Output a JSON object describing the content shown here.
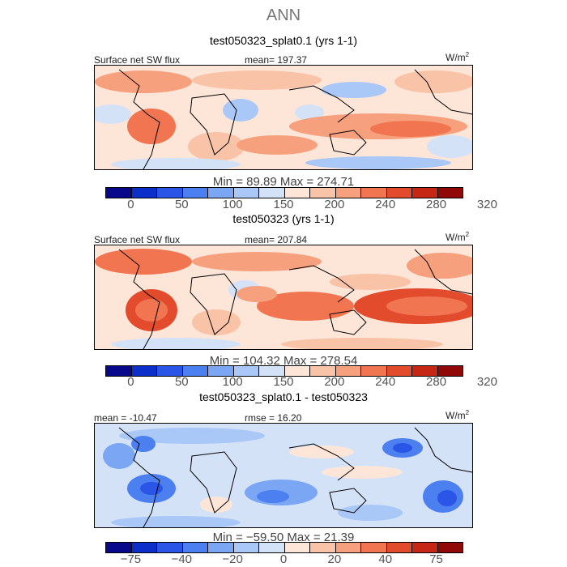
{
  "main_title": "ANN",
  "chart_data": [
    {
      "type": "heatmap",
      "title": "test050323_splat0.1 (yrs 1-1)",
      "variable": "Surface net SW flux",
      "stat_left": "",
      "stat_mid": "mean= 197.37",
      "units": "W/m",
      "units_sup": "2",
      "min_max": "Min =   89.89  Max = 274.71",
      "colorbar_ticks": [
        "0",
        "50",
        "100",
        "150",
        "200",
        "240",
        "280",
        "320"
      ],
      "colors": [
        "#08088a",
        "#0b2fc8",
        "#2a55e6",
        "#4c7ff0",
        "#7aa6f4",
        "#a9c7f7",
        "#d4e2f8",
        "#fde5d8",
        "#f9c3a7",
        "#f6a07d",
        "#f07550",
        "#e24b2c",
        "#c52714",
        "#900808"
      ],
      "mean": 197.37,
      "min": 89.89,
      "max": 274.71
    },
    {
      "type": "heatmap",
      "title": "test050323 (yrs 1-1)",
      "variable": "Surface net SW flux",
      "stat_left": "",
      "stat_mid": "mean= 207.84",
      "units": "W/m",
      "units_sup": "2",
      "min_max": "Min = 104.32  Max = 278.54",
      "colorbar_ticks": [
        "0",
        "50",
        "100",
        "150",
        "200",
        "240",
        "280",
        "320"
      ],
      "colors": [
        "#08088a",
        "#0b2fc8",
        "#2a55e6",
        "#4c7ff0",
        "#7aa6f4",
        "#a9c7f7",
        "#d4e2f8",
        "#fde5d8",
        "#f9c3a7",
        "#f6a07d",
        "#f07550",
        "#e24b2c",
        "#c52714",
        "#900808"
      ],
      "mean": 207.84,
      "min": 104.32,
      "max": 278.54
    },
    {
      "type": "heatmap",
      "title": "test050323_splat0.1 - test050323",
      "variable": "",
      "stat_left": "mean = -10.47",
      "stat_mid": "rmse =  16.20",
      "units": "W/m",
      "units_sup": "2",
      "min_max": "Min = −59.50  Max =  21.39",
      "colorbar_ticks": [
        "−75",
        "−40",
        "−20",
        "0",
        "20",
        "40",
        "75"
      ],
      "colors": [
        "#08088a",
        "#0b2fc8",
        "#2a55e6",
        "#4c7ff0",
        "#7aa6f4",
        "#a9c7f7",
        "#d4e2f8",
        "#fde5d8",
        "#f9c3a7",
        "#f6a07d",
        "#f07550",
        "#e24b2c",
        "#c52714",
        "#900808"
      ],
      "mean": -10.47,
      "rmse": 16.2,
      "min": -59.5,
      "max": 21.39
    }
  ]
}
